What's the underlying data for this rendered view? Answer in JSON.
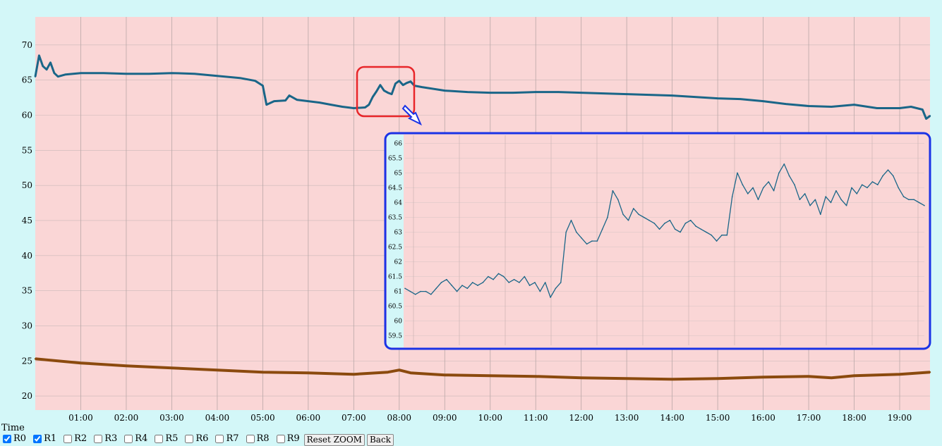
{
  "chart_data": [
    {
      "type": "line",
      "title": "",
      "xlabel": "Time",
      "ylabel": "",
      "ylim": [
        18,
        74
      ],
      "xlim": [
        "00:00",
        "19:40"
      ],
      "y_ticks": [
        20,
        25,
        30,
        35,
        40,
        45,
        50,
        55,
        60,
        65,
        70
      ],
      "x_ticks": [
        "01:00",
        "02:00",
        "03:00",
        "04:00",
        "05:00",
        "06:00",
        "07:00",
        "08:00",
        "09:00",
        "10:00",
        "11:00",
        "12:00",
        "13:00",
        "14:00",
        "15:00",
        "16:00",
        "17:00",
        "18:00",
        "19:00"
      ],
      "grid": true,
      "background_color": "#fad6d6",
      "series": [
        {
          "name": "R0",
          "color": "#1a6688",
          "x": [
            "00:00",
            "00:05",
            "00:10",
            "00:15",
            "00:20",
            "00:25",
            "00:30",
            "00:40",
            "00:50",
            "01:00",
            "01:30",
            "02:00",
            "02:30",
            "03:00",
            "03:30",
            "04:00",
            "04:30",
            "04:50",
            "05:00",
            "05:05",
            "05:15",
            "05:30",
            "05:35",
            "05:45",
            "06:00",
            "06:15",
            "06:30",
            "06:45",
            "07:00",
            "07:15",
            "07:20",
            "07:25",
            "07:30",
            "07:35",
            "07:40",
            "07:45",
            "07:50",
            "07:55",
            "08:00",
            "08:05",
            "08:10",
            "08:15",
            "08:20",
            "08:30",
            "09:00",
            "09:30",
            "10:00",
            "10:30",
            "11:00",
            "11:30",
            "12:00",
            "12:30",
            "13:00",
            "13:30",
            "14:00",
            "14:30",
            "15:00",
            "15:30",
            "16:00",
            "16:30",
            "17:00",
            "17:30",
            "18:00",
            "18:30",
            "19:00",
            "19:15",
            "19:30",
            "19:35",
            "19:40"
          ],
          "values": [
            65.5,
            68.5,
            67.0,
            66.5,
            67.5,
            66.0,
            65.5,
            65.8,
            65.9,
            66.0,
            66.0,
            65.9,
            65.9,
            66.0,
            65.9,
            65.6,
            65.3,
            64.9,
            64.2,
            61.5,
            62.0,
            62.1,
            62.8,
            62.2,
            62.0,
            61.8,
            61.5,
            61.2,
            61.0,
            61.1,
            61.5,
            62.6,
            63.4,
            64.3,
            63.5,
            63.2,
            63.0,
            64.5,
            64.9,
            64.3,
            64.6,
            64.8,
            64.2,
            64.0,
            63.5,
            63.3,
            63.2,
            63.2,
            63.3,
            63.3,
            63.2,
            63.1,
            63.0,
            62.9,
            62.8,
            62.6,
            62.4,
            62.3,
            62.0,
            61.6,
            61.3,
            61.2,
            61.5,
            61.0,
            61.0,
            61.2,
            60.8,
            59.5,
            59.9
          ]
        },
        {
          "name": "R1",
          "color": "#8b4a0e",
          "x": [
            "00:00",
            "01:00",
            "02:00",
            "03:00",
            "04:00",
            "05:00",
            "06:00",
            "07:00",
            "07:45",
            "08:00",
            "08:15",
            "09:00",
            "10:00",
            "11:00",
            "12:00",
            "13:00",
            "14:00",
            "15:00",
            "16:00",
            "17:00",
            "17:30",
            "18:00",
            "19:00",
            "19:40"
          ],
          "values": [
            25.3,
            24.7,
            24.3,
            24.0,
            23.7,
            23.4,
            23.3,
            23.1,
            23.4,
            23.7,
            23.3,
            23.0,
            22.9,
            22.8,
            22.6,
            22.5,
            22.4,
            22.5,
            22.7,
            22.8,
            22.6,
            22.9,
            23.1,
            23.4
          ]
        }
      ]
    },
    {
      "type": "line",
      "title": "",
      "xlabel": "",
      "ylabel": "",
      "ylim": [
        59.3,
        66.2
      ],
      "y_ticks": [
        59.5,
        60,
        60.5,
        61,
        61.5,
        62,
        62.5,
        63,
        63.5,
        64,
        64.5,
        65,
        65.5,
        66
      ],
      "grid": true,
      "series": [
        {
          "name": "R0",
          "color": "#1a6688",
          "x": [
            0,
            1,
            2,
            3,
            4,
            5,
            6,
            7,
            8,
            9,
            10,
            11,
            12,
            13,
            14,
            15,
            16,
            17,
            18,
            19,
            20,
            21,
            22,
            23,
            24,
            25,
            26,
            27,
            28,
            29,
            30,
            31,
            32,
            33,
            34,
            35,
            36,
            37,
            38,
            39,
            40,
            41,
            42,
            43,
            44,
            45,
            46,
            47,
            48,
            49,
            50,
            51,
            52,
            53,
            54,
            55,
            56,
            57,
            58,
            59,
            60,
            61,
            62,
            63,
            64,
            65,
            66,
            67,
            68,
            69,
            70,
            71,
            72,
            73,
            74,
            75,
            76,
            77,
            78,
            79,
            80,
            81,
            82,
            83,
            84,
            85,
            86,
            87,
            88,
            89,
            90,
            91,
            92,
            93,
            94,
            95,
            96,
            97,
            98,
            99,
            100
          ],
          "values": [
            61.1,
            61.0,
            60.9,
            61.0,
            61.0,
            60.9,
            61.1,
            61.3,
            61.4,
            61.2,
            61.0,
            61.2,
            61.1,
            61.3,
            61.2,
            61.3,
            61.5,
            61.4,
            61.6,
            61.5,
            61.3,
            61.4,
            61.3,
            61.5,
            61.2,
            61.3,
            61.0,
            61.3,
            60.8,
            61.1,
            61.3,
            63.0,
            63.4,
            63.0,
            62.8,
            62.6,
            62.7,
            62.7,
            63.1,
            63.5,
            64.4,
            64.1,
            63.6,
            63.4,
            63.8,
            63.6,
            63.5,
            63.4,
            63.3,
            63.1,
            63.3,
            63.4,
            63.1,
            63.0,
            63.3,
            63.4,
            63.2,
            63.1,
            63.0,
            62.9,
            62.7,
            62.9,
            62.9,
            64.2,
            65.0,
            64.6,
            64.3,
            64.5,
            64.1,
            64.5,
            64.7,
            64.4,
            65.0,
            65.3,
            64.9,
            64.6,
            64.1,
            64.3,
            63.9,
            64.1,
            63.6,
            64.2,
            64.0,
            64.4,
            64.1,
            63.9,
            64.5,
            64.3,
            64.6,
            64.5,
            64.7,
            64.6,
            64.9,
            65.1,
            64.9,
            64.5,
            64.2,
            64.1,
            64.1,
            64.0,
            63.9
          ]
        }
      ]
    }
  ],
  "inset_note": "",
  "controls": {
    "time_label": "Time",
    "toggles": [
      {
        "label": "R0",
        "checked": true
      },
      {
        "label": "R1",
        "checked": true
      },
      {
        "label": "R2",
        "checked": false
      },
      {
        "label": "R3",
        "checked": false
      },
      {
        "label": "R4",
        "checked": false
      },
      {
        "label": "R5",
        "checked": false
      },
      {
        "label": "R6",
        "checked": false
      },
      {
        "label": "R7",
        "checked": false
      },
      {
        "label": "R8",
        "checked": false
      },
      {
        "label": "R9",
        "checked": false
      }
    ],
    "reset_zoom_label": "Reset ZOOM",
    "back_label": "Back"
  },
  "colors": {
    "page_background": "#d3f7f8",
    "highlight_box": "#e8262a",
    "inset_border": "#1a33e6"
  }
}
